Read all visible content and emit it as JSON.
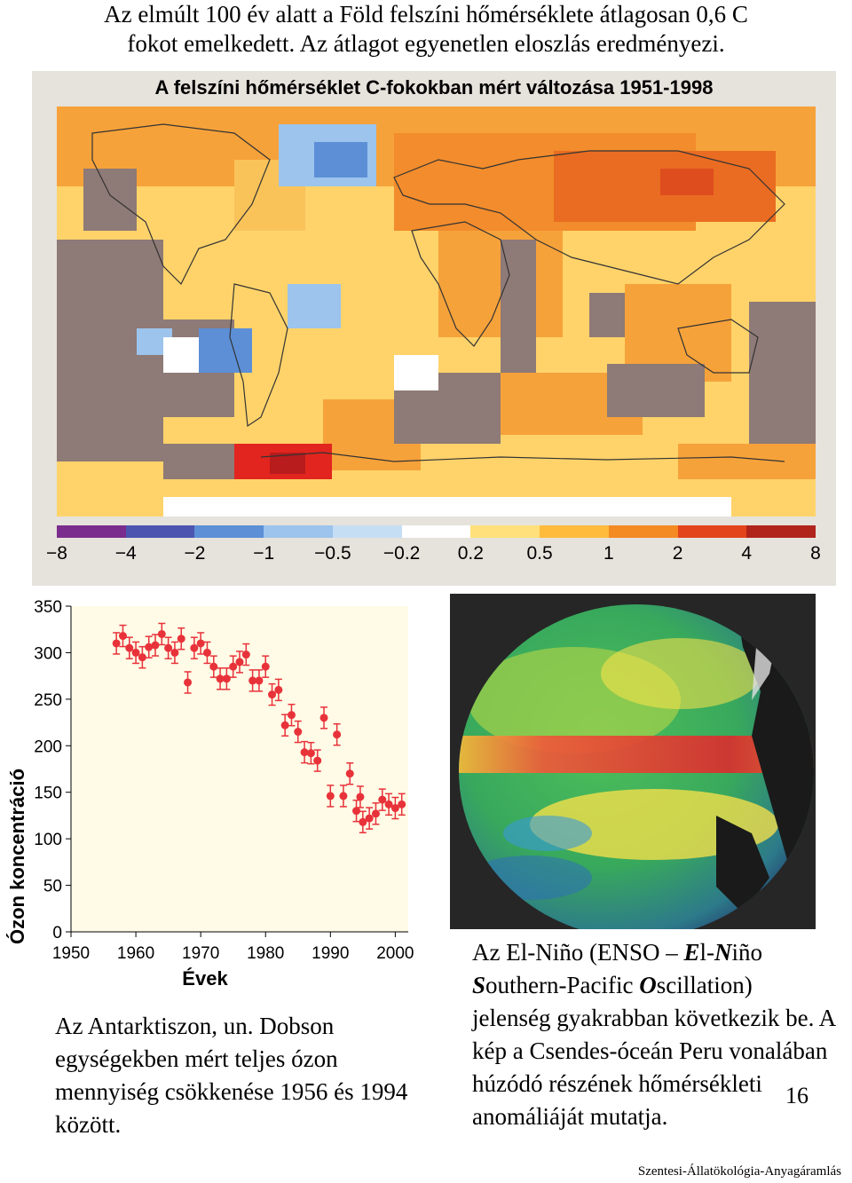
{
  "intro": {
    "line1": "Az elmúlt 100 év alatt a Föld felszíni hőmérséklete átlagosan 0,6 C",
    "line2": "fokot emelkedett. Az átlagot egyenetlen eloszlás eredményezi."
  },
  "map": {
    "title": "A felszíni hőmérséklet C-fokokban mért változása 1951-1998",
    "legend_labels": [
      "−8",
      "−4",
      "−2",
      "−1",
      "−0.5",
      "−0.2",
      "0.2",
      "0.5",
      "1",
      "2",
      "4",
      "8"
    ],
    "legend_colors": [
      "#7a2d8c",
      "#4c55b0",
      "#5c8fd6",
      "#9cc4ec",
      "#c6def4",
      "#ffffff",
      "#ffe07a",
      "#ffbb3c",
      "#f48a22",
      "#e3441c",
      "#b0241c"
    ]
  },
  "ozone_chart": {
    "type": "scatter",
    "ylabel": "Ózon koncentráció",
    "xlabel": "Évek",
    "ylim": [
      0,
      350
    ],
    "xlim": [
      1950,
      2002
    ],
    "x_ticks": [
      "1950",
      "1960",
      "1970",
      "1980",
      "1990",
      "2000"
    ],
    "y_ticks": [
      "0",
      "50",
      "100",
      "150",
      "200",
      "250",
      "300",
      "350"
    ],
    "marker_color": "#e8323a",
    "points": [
      {
        "x": 1957,
        "y": 310
      },
      {
        "x": 1958,
        "y": 318
      },
      {
        "x": 1959,
        "y": 305
      },
      {
        "x": 1960,
        "y": 300
      },
      {
        "x": 1961,
        "y": 295
      },
      {
        "x": 1962,
        "y": 306
      },
      {
        "x": 1963,
        "y": 308
      },
      {
        "x": 1964,
        "y": 320
      },
      {
        "x": 1965,
        "y": 305
      },
      {
        "x": 1966,
        "y": 300
      },
      {
        "x": 1967,
        "y": 315
      },
      {
        "x": 1968,
        "y": 268
      },
      {
        "x": 1969,
        "y": 305
      },
      {
        "x": 1970,
        "y": 310
      },
      {
        "x": 1971,
        "y": 300
      },
      {
        "x": 1972,
        "y": 285
      },
      {
        "x": 1973,
        "y": 272
      },
      {
        "x": 1974,
        "y": 272
      },
      {
        "x": 1975,
        "y": 285
      },
      {
        "x": 1976,
        "y": 290
      },
      {
        "x": 1977,
        "y": 298
      },
      {
        "x": 1978,
        "y": 270
      },
      {
        "x": 1979,
        "y": 270
      },
      {
        "x": 1980,
        "y": 285
      },
      {
        "x": 1981,
        "y": 255
      },
      {
        "x": 1982,
        "y": 260
      },
      {
        "x": 1983,
        "y": 222
      },
      {
        "x": 1984,
        "y": 233
      },
      {
        "x": 1985,
        "y": 215
      },
      {
        "x": 1986,
        "y": 193
      },
      {
        "x": 1987,
        "y": 192
      },
      {
        "x": 1988,
        "y": 184
      },
      {
        "x": 1989,
        "y": 230
      },
      {
        "x": 1990,
        "y": 146
      },
      {
        "x": 1991,
        "y": 212
      },
      {
        "x": 1992,
        "y": 146
      },
      {
        "x": 1993,
        "y": 170
      },
      {
        "x": 1994,
        "y": 130
      },
      {
        "x": 1994.6,
        "y": 145
      },
      {
        "x": 1995,
        "y": 118
      },
      {
        "x": 1996,
        "y": 122
      },
      {
        "x": 1997,
        "y": 127
      },
      {
        "x": 1998,
        "y": 142
      },
      {
        "x": 1999,
        "y": 137
      },
      {
        "x": 2000,
        "y": 133
      },
      {
        "x": 2001,
        "y": 137
      }
    ]
  },
  "ozone_caption": "Az Antarktiszon, un. Dobson egységekben mért teljes ózon mennyiség csökkenése 1956 és 1994 között.",
  "globe_caption": {
    "l1a": "Az El-Niño (ENSO – ",
    "l1b": "E",
    "l1c": "l-",
    "l1d": "N",
    "l1e": "iño",
    "l2a": "S",
    "l2b": "outhern-Pacific ",
    "l2c": "O",
    "l2d": "scillation)",
    "rest": "jelenség gyakrabban következik be. A kép a Csendes-óceán Peru vonalában húzódó részének hőmérsékleti anomáliáját mutatja."
  },
  "page_number": "16",
  "footer": "Szentesi-Állatökológia-Anyagáramlás"
}
